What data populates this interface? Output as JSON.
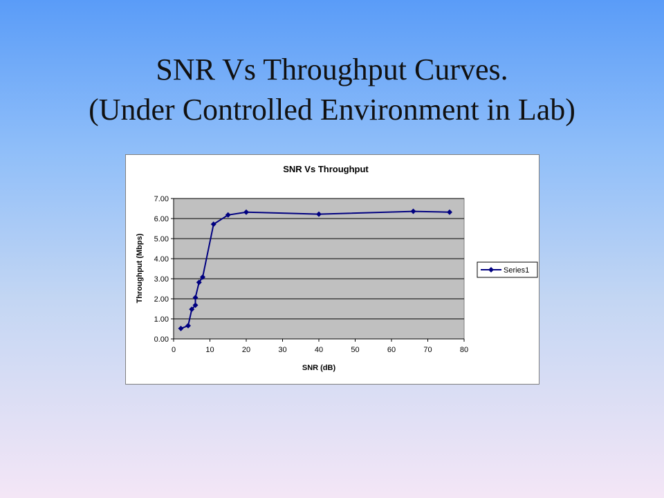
{
  "slide": {
    "title_line1": "SNR Vs Throughput Curves.",
    "title_line2": "(Under Controlled Environment in Lab)"
  },
  "colors": {
    "series": "#000080",
    "plot_area": "#c0c0c0",
    "gridline": "#000000"
  },
  "chart_data": {
    "type": "line",
    "title": "SNR Vs Throughput",
    "xlabel": "SNR (dB)",
    "ylabel": "Throughput (Mbps)",
    "xlim": [
      0,
      80
    ],
    "ylim": [
      0,
      7
    ],
    "xticks": [
      "0",
      "10",
      "20",
      "30",
      "40",
      "50",
      "60",
      "70",
      "80"
    ],
    "yticks": [
      "0.00",
      "1.00",
      "2.00",
      "3.00",
      "4.00",
      "5.00",
      "6.00",
      "7.00"
    ],
    "grid": true,
    "legend_position": "right",
    "series": [
      {
        "name": "Series1",
        "marker": "diamond",
        "x": [
          2,
          4,
          5,
          6,
          6,
          7,
          8,
          11,
          15,
          20,
          40,
          66,
          76
        ],
        "y": [
          0.52,
          0.66,
          1.48,
          1.68,
          2.06,
          2.82,
          3.08,
          5.72,
          6.18,
          6.32,
          6.22,
          6.36,
          6.32
        ]
      }
    ]
  }
}
